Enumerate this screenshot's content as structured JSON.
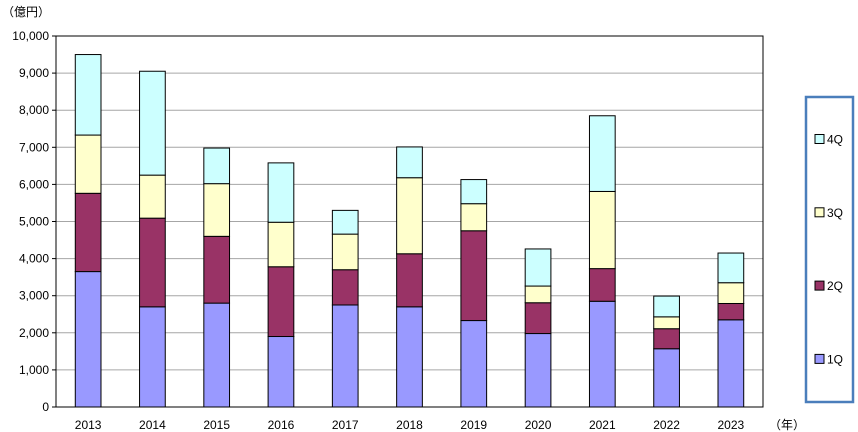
{
  "chart_data": {
    "type": "bar",
    "stacked": true,
    "y_unit_label": "（億円）",
    "x_unit_label": "（年）",
    "categories": [
      "2013",
      "2014",
      "2015",
      "2016",
      "2017",
      "2018",
      "2019",
      "2020",
      "2021",
      "2022",
      "2023"
    ],
    "series": [
      {
        "name": "1Q",
        "color": "#9999ff",
        "values": [
          3650,
          2700,
          2800,
          1900,
          2750,
          2700,
          2330,
          1980,
          2850,
          1570,
          2350
        ]
      },
      {
        "name": "2Q",
        "color": "#993366",
        "values": [
          2110,
          2390,
          1800,
          1880,
          950,
          1430,
          2420,
          830,
          880,
          540,
          440
        ]
      },
      {
        "name": "3Q",
        "color": "#ffffcc",
        "values": [
          1570,
          1160,
          1420,
          1200,
          960,
          2050,
          730,
          450,
          2080,
          320,
          560
        ]
      },
      {
        "name": "4Q",
        "color": "#ccffff",
        "values": [
          2170,
          2800,
          960,
          1600,
          640,
          830,
          650,
          1000,
          2040,
          560,
          800
        ]
      }
    ],
    "ylim": [
      0,
      10000
    ],
    "y_ticks": [
      "0",
      "1,000",
      "2,000",
      "3,000",
      "4,000",
      "5,000",
      "6,000",
      "7,000",
      "8,000",
      "9,000",
      "10,000"
    ],
    "grid": true,
    "legend_position": "right",
    "legend_border_color": "#4a7ebb"
  }
}
